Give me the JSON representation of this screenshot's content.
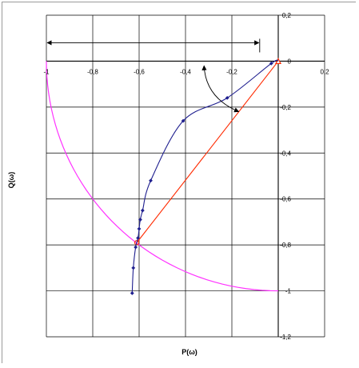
{
  "chart_data": {
    "type": "scatter",
    "xlabel": "P(ω)",
    "ylabel": "Q(ω)",
    "xlim": [
      -1,
      0.2
    ],
    "ylim": [
      -1.2,
      0.2
    ],
    "x_ticks": [
      {
        "value": -1,
        "label": "-1"
      },
      {
        "value": -0.8,
        "label": "-0,8"
      },
      {
        "value": -0.6,
        "label": "-0,6"
      },
      {
        "value": -0.4,
        "label": "-0,4"
      },
      {
        "value": -0.2,
        "label": "-0,2"
      },
      {
        "value": 0,
        "label": "0"
      },
      {
        "value": 0.2,
        "label": "0,2"
      }
    ],
    "y_ticks": [
      {
        "value": 0.2,
        "label": "0,2"
      },
      {
        "value": 0,
        "label": "0"
      },
      {
        "value": -0.2,
        "label": "-0,2"
      },
      {
        "value": -0.4,
        "label": "-0,4"
      },
      {
        "value": -0.6,
        "label": "-0,6"
      },
      {
        "value": -0.8,
        "label": "-0,8"
      },
      {
        "value": -1,
        "label": "-1"
      },
      {
        "value": -1.2,
        "label": "-1,2"
      }
    ],
    "grid": true,
    "colors": {
      "hodograph": "#1f1f8f",
      "circle": "#ff33ff",
      "vector": "#ff2a00",
      "grid": "#000000",
      "annotation": "#000000"
    },
    "series": [
      {
        "kind": "hodograph",
        "points": [
          [
            -0.63,
            -1.01
          ],
          [
            -0.625,
            -0.9
          ],
          [
            -0.615,
            -0.81
          ],
          [
            -0.605,
            -0.77
          ],
          [
            -0.6,
            -0.73
          ],
          [
            -0.595,
            -0.69
          ],
          [
            -0.585,
            -0.65
          ],
          [
            -0.55,
            -0.52
          ],
          [
            -0.41,
            -0.26
          ],
          [
            -0.22,
            -0.16
          ],
          [
            -0.03,
            -0.01
          ],
          [
            0,
            0
          ]
        ]
      },
      {
        "kind": "unit-circle-arc",
        "center": [
          0,
          0
        ],
        "radius": 1
      },
      {
        "kind": "radius-vector",
        "from": [
          0,
          0
        ],
        "to": [
          -0.61,
          -0.79
        ]
      }
    ],
    "annotations": [
      {
        "type": "double-arrow",
        "from": [
          -1,
          0.08
        ],
        "to": [
          -0.08,
          0.08
        ]
      },
      {
        "type": "curved-arrow",
        "description": "angle"
      }
    ]
  }
}
